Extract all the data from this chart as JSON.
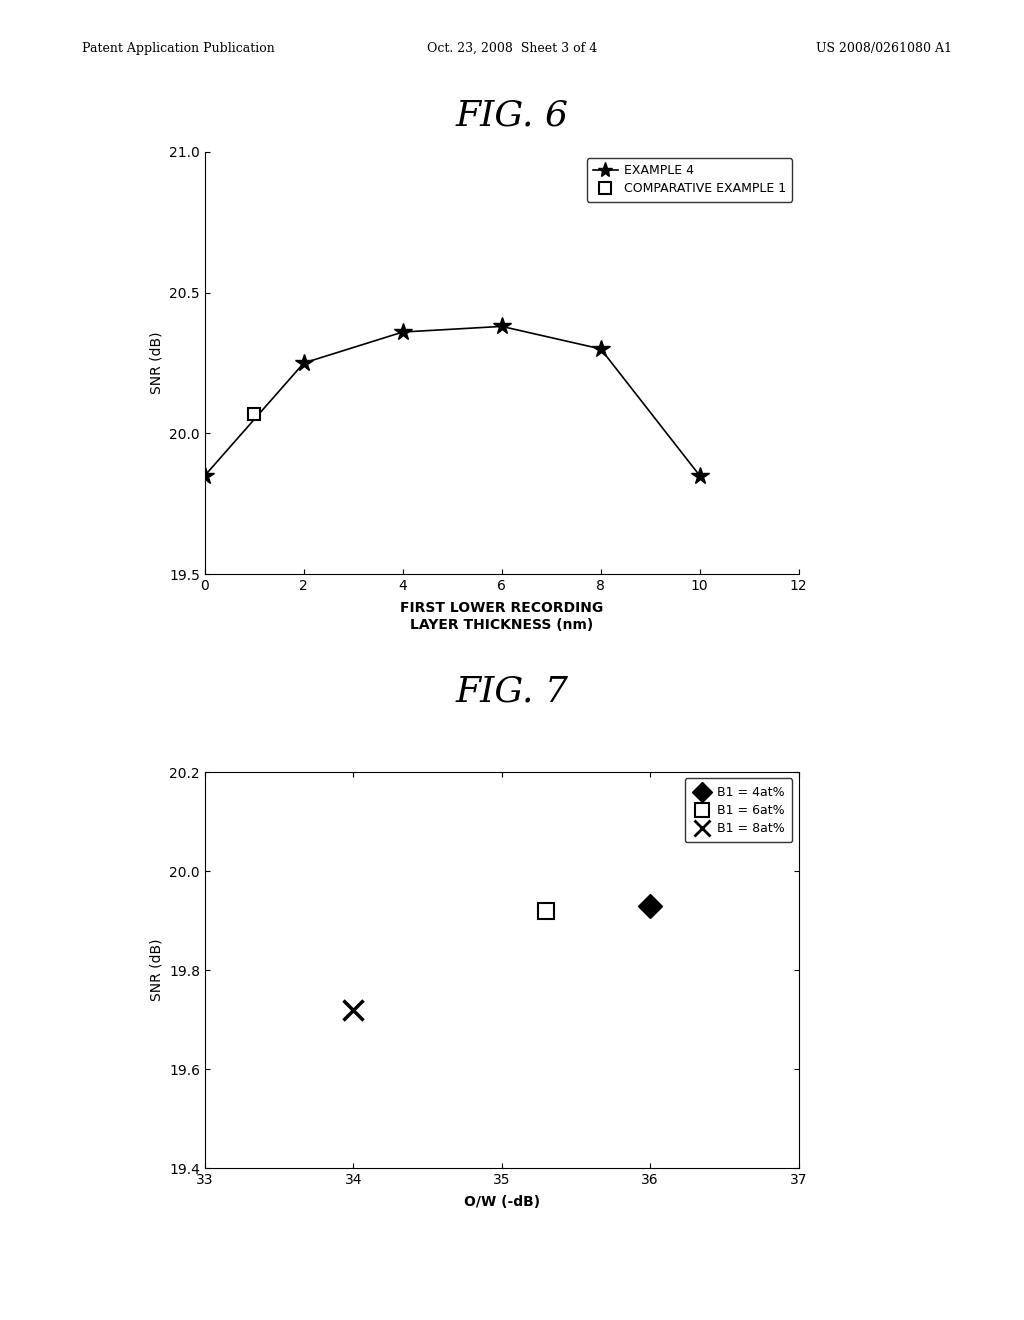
{
  "fig6": {
    "title": "FIG. 6",
    "example4_x": [
      0,
      2,
      4,
      6,
      8,
      10
    ],
    "example4_y": [
      19.85,
      20.25,
      20.36,
      20.38,
      20.3,
      19.85
    ],
    "comp_ex1_x": [
      1
    ],
    "comp_ex1_y": [
      20.07
    ],
    "xlabel": "FIRST LOWER RECORDING\nLAYER THICKNESS (nm)",
    "ylabel": "SNR (dB)",
    "xlim": [
      0,
      12
    ],
    "ylim": [
      19.5,
      21.0
    ],
    "xticks": [
      0,
      2,
      4,
      6,
      8,
      10,
      12
    ],
    "yticks": [
      19.5,
      20.0,
      20.5,
      21.0
    ],
    "legend_example4": "EXAMPLE 4",
    "legend_comp": "COMPARATIVE EXAMPLE 1"
  },
  "fig7": {
    "title": "FIG. 7",
    "b1_4_x": [
      36.0
    ],
    "b1_4_y": [
      19.93
    ],
    "b1_6_x": [
      35.3
    ],
    "b1_6_y": [
      19.92
    ],
    "b1_8_x": [
      34.0
    ],
    "b1_8_y": [
      19.72
    ],
    "xlabel": "O/W (-dB)",
    "ylabel": "SNR (dB)",
    "xlim": [
      33,
      37
    ],
    "ylim": [
      19.4,
      20.2
    ],
    "xticks": [
      33,
      34,
      35,
      36,
      37
    ],
    "yticks": [
      19.4,
      19.6,
      19.8,
      20.0,
      20.2
    ],
    "legend_b1_4": "B1 = 4at%",
    "legend_b1_6": "B1 = 6at%",
    "legend_b1_8": "B1 = 8at%"
  },
  "header_left": "Patent Application Publication",
  "header_mid": "Oct. 23, 2008  Sheet 3 of 4",
  "header_right": "US 2008/0261080 A1",
  "bg_color": "#ffffff",
  "text_color": "#000000"
}
